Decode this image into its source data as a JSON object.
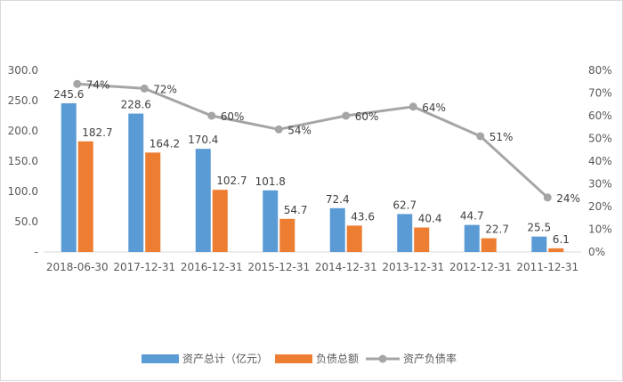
{
  "chart_data": {
    "type": "bar",
    "categories": [
      "2018-06-30",
      "2017-12-31",
      "2016-12-31",
      "2015-12-31",
      "2014-12-31",
      "2013-12-31",
      "2012-12-31",
      "2011-12-31"
    ],
    "series": [
      {
        "name": "资产总计（亿元）",
        "kind": "bar",
        "axis": "left",
        "color": "#5b9bd5",
        "values": [
          245.6,
          228.6,
          170.4,
          101.8,
          72.4,
          62.7,
          44.7,
          25.5
        ],
        "labels": [
          "245.6",
          "228.6",
          "170.4",
          "101.8",
          "72.4",
          "62.7",
          "44.7",
          "25.5"
        ]
      },
      {
        "name": "负债总额",
        "kind": "bar",
        "axis": "left",
        "color": "#ed7d31",
        "values": [
          182.7,
          164.2,
          102.7,
          54.7,
          43.6,
          40.4,
          22.7,
          6.1
        ],
        "labels": [
          "182.7",
          "164.2",
          "102.7",
          "54.7",
          "43.6",
          "40.4",
          "22.7",
          "6.1"
        ]
      },
      {
        "name": "资产负债率",
        "kind": "line",
        "axis": "right",
        "color": "#a5a5a5",
        "values": [
          74,
          72,
          60,
          54,
          60,
          64,
          51,
          24
        ],
        "labels": [
          "74%",
          "72%",
          "60%",
          "54%",
          "60%",
          "64%",
          "51%",
          "24%"
        ]
      }
    ],
    "y_left": {
      "ylim": [
        0,
        300
      ],
      "ticks": [
        "-",
        "50.0",
        "100.0",
        "150.0",
        "200.0",
        "250.0",
        "300.0"
      ]
    },
    "y_right": {
      "ylim": [
        0,
        80
      ],
      "ticks": [
        "0%",
        "10%",
        "20%",
        "30%",
        "40%",
        "50%",
        "60%",
        "70%",
        "80%"
      ]
    },
    "title": "",
    "xlabel": "",
    "ylabel": "",
    "grid": false,
    "legend_position": "bottom"
  }
}
